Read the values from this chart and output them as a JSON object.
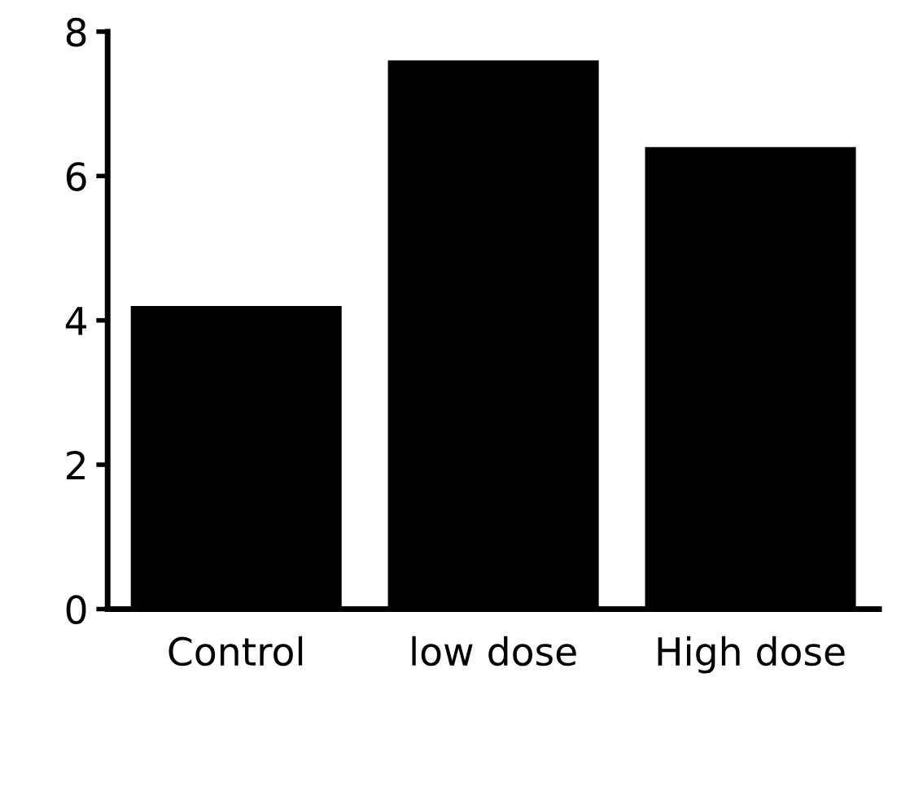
{
  "chart_data": {
    "type": "bar",
    "categories": [
      "Control",
      "low dose",
      "High dose"
    ],
    "values": [
      4.2,
      7.6,
      6.4
    ],
    "color": "#000000",
    "ylim": [
      0,
      8
    ],
    "yticks": [
      0,
      2,
      4,
      6,
      8
    ],
    "grid": false
  }
}
